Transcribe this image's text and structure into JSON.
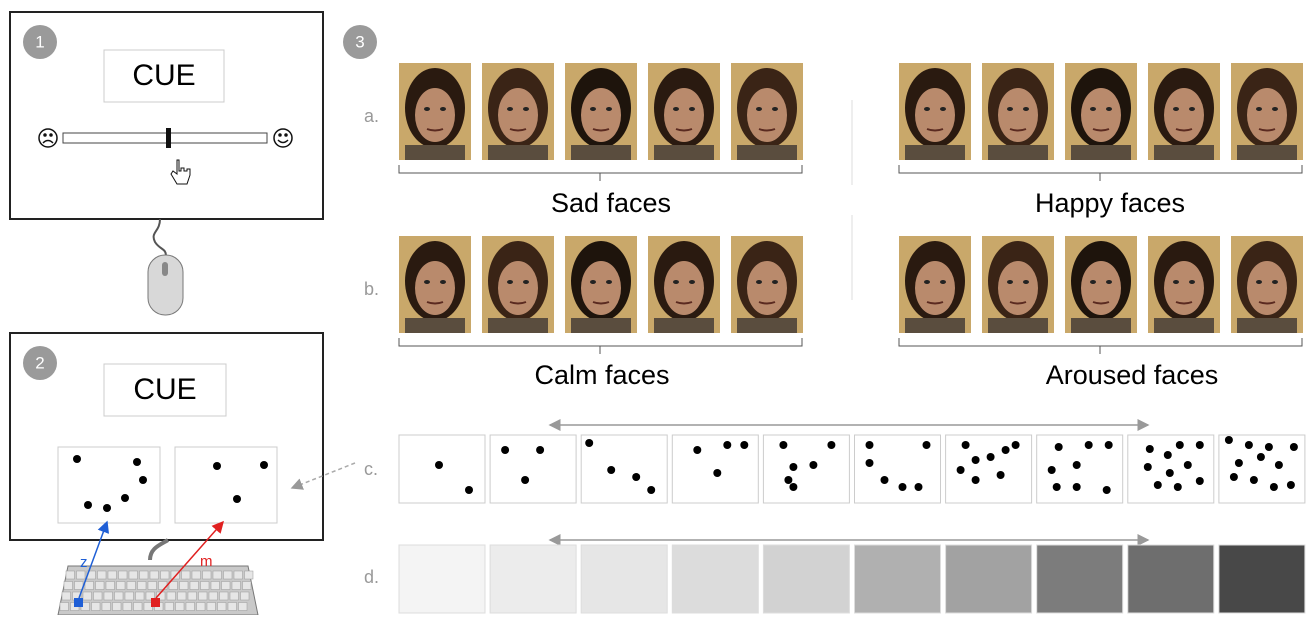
{
  "panel1": {
    "badge": "1",
    "cue": "CUE"
  },
  "panel2": {
    "badge": "2",
    "cue": "CUE",
    "key_left": "z",
    "key_right": "m"
  },
  "panel3": {
    "badge": "3",
    "rows": {
      "a": "a.",
      "b": "b.",
      "c": "c.",
      "d": "d."
    },
    "groups": {
      "sad": "Sad faces",
      "happy": "Happy faces",
      "calm": "Calm faces",
      "aroused": "Aroused faces"
    }
  }
}
